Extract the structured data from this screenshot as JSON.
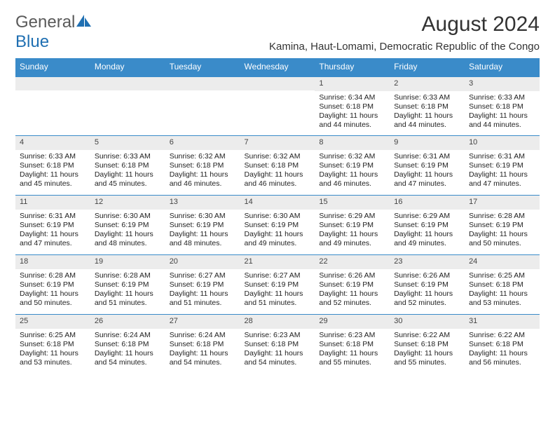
{
  "logo": {
    "part1": "General",
    "part2": "Blue"
  },
  "title": "August 2024",
  "location": "Kamina, Haut-Lomami, Democratic Republic of the Congo",
  "header_bg": "#3a8bc9",
  "header_fg": "#ffffff",
  "daynum_bg": "#ececec",
  "body_fontsize": "10.5px",
  "weekdays": [
    "Sunday",
    "Monday",
    "Tuesday",
    "Wednesday",
    "Thursday",
    "Friday",
    "Saturday"
  ],
  "weeks": [
    [
      null,
      null,
      null,
      null,
      {
        "n": "1",
        "sr": "6:34 AM",
        "ss": "6:18 PM",
        "dl": "11 hours and 44 minutes."
      },
      {
        "n": "2",
        "sr": "6:33 AM",
        "ss": "6:18 PM",
        "dl": "11 hours and 44 minutes."
      },
      {
        "n": "3",
        "sr": "6:33 AM",
        "ss": "6:18 PM",
        "dl": "11 hours and 44 minutes."
      }
    ],
    [
      {
        "n": "4",
        "sr": "6:33 AM",
        "ss": "6:18 PM",
        "dl": "11 hours and 45 minutes."
      },
      {
        "n": "5",
        "sr": "6:33 AM",
        "ss": "6:18 PM",
        "dl": "11 hours and 45 minutes."
      },
      {
        "n": "6",
        "sr": "6:32 AM",
        "ss": "6:18 PM",
        "dl": "11 hours and 46 minutes."
      },
      {
        "n": "7",
        "sr": "6:32 AM",
        "ss": "6:18 PM",
        "dl": "11 hours and 46 minutes."
      },
      {
        "n": "8",
        "sr": "6:32 AM",
        "ss": "6:19 PM",
        "dl": "11 hours and 46 minutes."
      },
      {
        "n": "9",
        "sr": "6:31 AM",
        "ss": "6:19 PM",
        "dl": "11 hours and 47 minutes."
      },
      {
        "n": "10",
        "sr": "6:31 AM",
        "ss": "6:19 PM",
        "dl": "11 hours and 47 minutes."
      }
    ],
    [
      {
        "n": "11",
        "sr": "6:31 AM",
        "ss": "6:19 PM",
        "dl": "11 hours and 47 minutes."
      },
      {
        "n": "12",
        "sr": "6:30 AM",
        "ss": "6:19 PM",
        "dl": "11 hours and 48 minutes."
      },
      {
        "n": "13",
        "sr": "6:30 AM",
        "ss": "6:19 PM",
        "dl": "11 hours and 48 minutes."
      },
      {
        "n": "14",
        "sr": "6:30 AM",
        "ss": "6:19 PM",
        "dl": "11 hours and 49 minutes."
      },
      {
        "n": "15",
        "sr": "6:29 AM",
        "ss": "6:19 PM",
        "dl": "11 hours and 49 minutes."
      },
      {
        "n": "16",
        "sr": "6:29 AM",
        "ss": "6:19 PM",
        "dl": "11 hours and 49 minutes."
      },
      {
        "n": "17",
        "sr": "6:28 AM",
        "ss": "6:19 PM",
        "dl": "11 hours and 50 minutes."
      }
    ],
    [
      {
        "n": "18",
        "sr": "6:28 AM",
        "ss": "6:19 PM",
        "dl": "11 hours and 50 minutes."
      },
      {
        "n": "19",
        "sr": "6:28 AM",
        "ss": "6:19 PM",
        "dl": "11 hours and 51 minutes."
      },
      {
        "n": "20",
        "sr": "6:27 AM",
        "ss": "6:19 PM",
        "dl": "11 hours and 51 minutes."
      },
      {
        "n": "21",
        "sr": "6:27 AM",
        "ss": "6:19 PM",
        "dl": "11 hours and 51 minutes."
      },
      {
        "n": "22",
        "sr": "6:26 AM",
        "ss": "6:19 PM",
        "dl": "11 hours and 52 minutes."
      },
      {
        "n": "23",
        "sr": "6:26 AM",
        "ss": "6:19 PM",
        "dl": "11 hours and 52 minutes."
      },
      {
        "n": "24",
        "sr": "6:25 AM",
        "ss": "6:18 PM",
        "dl": "11 hours and 53 minutes."
      }
    ],
    [
      {
        "n": "25",
        "sr": "6:25 AM",
        "ss": "6:18 PM",
        "dl": "11 hours and 53 minutes."
      },
      {
        "n": "26",
        "sr": "6:24 AM",
        "ss": "6:18 PM",
        "dl": "11 hours and 54 minutes."
      },
      {
        "n": "27",
        "sr": "6:24 AM",
        "ss": "6:18 PM",
        "dl": "11 hours and 54 minutes."
      },
      {
        "n": "28",
        "sr": "6:23 AM",
        "ss": "6:18 PM",
        "dl": "11 hours and 54 minutes."
      },
      {
        "n": "29",
        "sr": "6:23 AM",
        "ss": "6:18 PM",
        "dl": "11 hours and 55 minutes."
      },
      {
        "n": "30",
        "sr": "6:22 AM",
        "ss": "6:18 PM",
        "dl": "11 hours and 55 minutes."
      },
      {
        "n": "31",
        "sr": "6:22 AM",
        "ss": "6:18 PM",
        "dl": "11 hours and 56 minutes."
      }
    ]
  ],
  "labels": {
    "sunrise": "Sunrise:",
    "sunset": "Sunset:",
    "daylight": "Daylight:"
  }
}
